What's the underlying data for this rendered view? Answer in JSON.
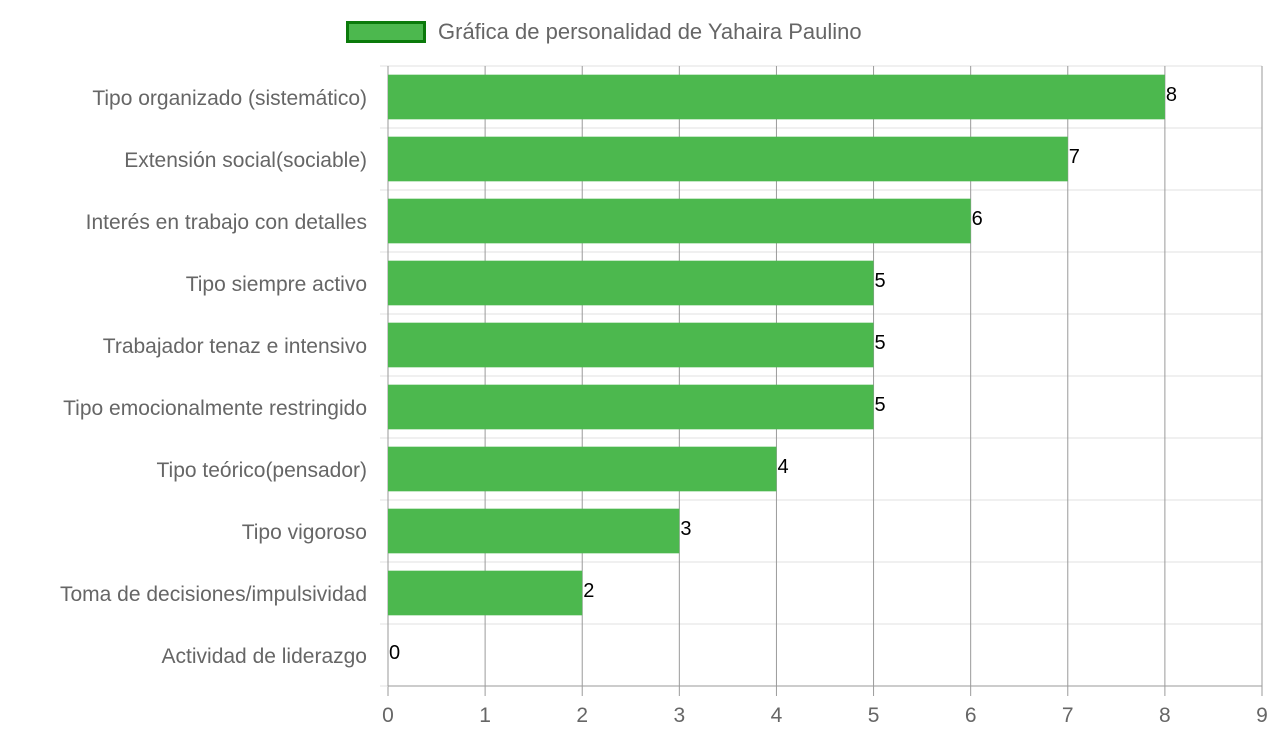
{
  "chart_data": {
    "type": "bar",
    "orientation": "horizontal",
    "legend": {
      "position": "top",
      "label": "Gráfica de personalidad de Yahaira Paulino"
    },
    "categories": [
      "Tipo organizado (sistemático)",
      "Extensión social(sociable)",
      "Interés en trabajo con detalles",
      "Tipo siempre activo",
      "Trabajador tenaz e intensivo",
      "Tipo emocionalmente restringido",
      "Tipo teórico(pensador)",
      "Tipo vigoroso",
      "Toma de decisiones/impulsividad",
      "Actividad de liderazgo"
    ],
    "series": [
      {
        "name": "Gráfica de personalidad de Yahaira Paulino",
        "values": [
          8,
          7,
          6,
          5,
          5,
          5,
          4,
          3,
          2,
          0
        ]
      }
    ],
    "xlim": [
      0,
      9
    ],
    "xticks": [
      0,
      1,
      2,
      3,
      4,
      5,
      6,
      7,
      8,
      9
    ],
    "grid": true,
    "data_labels": true,
    "colors": {
      "bar_fill": "#4cb84e",
      "legend_border": "#0b7a0b",
      "grid": "#e0e0e0",
      "vgrid": "#9a9a9a"
    }
  }
}
